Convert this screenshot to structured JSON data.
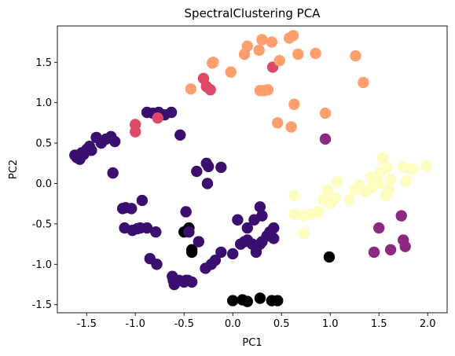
{
  "chart_data": {
    "type": "scatter",
    "title": "SpectralClustering PCA",
    "xlabel": "PC1",
    "ylabel": "PC2",
    "xlim": [
      -1.8,
      2.2
    ],
    "ylim": [
      -1.6,
      1.95
    ],
    "xticks": [
      "-1.5",
      "-1.0",
      "-0.5",
      "0.0",
      "0.5",
      "1.0",
      "1.5",
      "2.0"
    ],
    "xtick_values": [
      -1.5,
      -1.0,
      -0.5,
      0.0,
      0.5,
      1.0,
      1.5,
      2.0
    ],
    "yticks": [
      "-1.5",
      "-1.0",
      "-0.5",
      "0.0",
      "0.5",
      "1.0",
      "1.5"
    ],
    "ytick_values": [
      -1.5,
      -1.0,
      -0.5,
      0.0,
      0.5,
      1.0,
      1.5
    ],
    "grid": false,
    "series": [
      {
        "color": "#000004",
        "points": [
          [
            -0.45,
            -0.55
          ],
          [
            -0.5,
            -0.6
          ],
          [
            -0.42,
            -0.85
          ],
          [
            -0.42,
            -0.82
          ],
          [
            0.0,
            -1.45
          ],
          [
            0.1,
            -1.44
          ],
          [
            0.15,
            -1.46
          ],
          [
            0.28,
            -1.42
          ],
          [
            0.4,
            -1.45
          ],
          [
            0.46,
            -1.45
          ],
          [
            0.99,
            -0.91
          ]
        ]
      },
      {
        "color": "#3b0f70",
        "points": [
          [
            -1.62,
            0.35
          ],
          [
            -1.6,
            0.32
          ],
          [
            -1.58,
            0.34
          ],
          [
            -1.57,
            0.3
          ],
          [
            -1.55,
            0.38
          ],
          [
            -1.53,
            0.36
          ],
          [
            -1.5,
            0.42
          ],
          [
            -1.47,
            0.46
          ],
          [
            -1.45,
            0.41
          ],
          [
            -1.4,
            0.57
          ],
          [
            -1.35,
            0.5
          ],
          [
            -1.3,
            0.55
          ],
          [
            -1.25,
            0.58
          ],
          [
            -1.21,
            0.52
          ],
          [
            -1.23,
            0.13
          ],
          [
            -0.88,
            0.88
          ],
          [
            -0.82,
            0.87
          ],
          [
            -0.76,
            0.88
          ],
          [
            -0.7,
            0.85
          ],
          [
            -0.63,
            0.88
          ],
          [
            -0.54,
            0.6
          ],
          [
            -1.13,
            -0.31
          ],
          [
            -1.1,
            -0.3
          ],
          [
            -1.04,
            -0.31
          ],
          [
            -0.93,
            -0.21
          ],
          [
            -0.79,
            -0.6
          ],
          [
            -1.11,
            -0.55
          ],
          [
            -1.03,
            -0.58
          ],
          [
            -0.98,
            -0.56
          ],
          [
            -0.95,
            -0.55
          ],
          [
            -0.88,
            -0.55
          ],
          [
            -0.37,
            0.15
          ],
          [
            -0.27,
            0.25
          ],
          [
            -0.25,
            0.21
          ],
          [
            -0.12,
            0.2
          ],
          [
            -0.26,
            0.0
          ],
          [
            -0.85,
            -0.93
          ],
          [
            -0.78,
            -1.0
          ],
          [
            -0.62,
            -1.15
          ],
          [
            -0.6,
            -1.25
          ],
          [
            -0.55,
            -1.2
          ],
          [
            -0.5,
            -1.22
          ],
          [
            -0.48,
            -1.2
          ],
          [
            -0.46,
            -1.2
          ],
          [
            -0.42,
            -1.22
          ],
          [
            -0.61,
            -1.2
          ],
          [
            -0.28,
            -1.05
          ],
          [
            -0.22,
            -1.0
          ],
          [
            -0.18,
            -0.95
          ],
          [
            -0.12,
            -0.85
          ],
          [
            -0.35,
            -0.72
          ],
          [
            -0.48,
            -0.35
          ],
          [
            -0.45,
            -0.6
          ],
          [
            0.0,
            -0.87
          ],
          [
            0.05,
            -0.45
          ],
          [
            0.08,
            -0.75
          ],
          [
            0.12,
            -0.72
          ],
          [
            0.15,
            -0.7
          ],
          [
            0.2,
            -0.75
          ],
          [
            0.24,
            -0.85
          ],
          [
            0.25,
            -0.78
          ],
          [
            0.28,
            -0.75
          ],
          [
            0.3,
            -0.72
          ],
          [
            0.35,
            -0.65
          ],
          [
            0.42,
            -0.68
          ],
          [
            0.22,
            -0.45
          ],
          [
            0.28,
            -0.29
          ],
          [
            0.3,
            -0.4
          ],
          [
            0.38,
            -0.6
          ],
          [
            0.42,
            -0.55
          ],
          [
            0.15,
            -0.55
          ]
        ]
      },
      {
        "color": "#8c2981",
        "points": [
          [
            0.95,
            0.55
          ],
          [
            1.5,
            -0.55
          ],
          [
            1.45,
            -0.85
          ],
          [
            1.62,
            -0.82
          ],
          [
            1.73,
            -0.4
          ],
          [
            1.75,
            -0.7
          ],
          [
            1.77,
            -0.78
          ]
        ]
      },
      {
        "color": "#de4968",
        "points": [
          [
            -1.0,
            0.73
          ],
          [
            -1.0,
            0.64
          ],
          [
            -0.77,
            0.81
          ],
          [
            -0.3,
            1.3
          ],
          [
            -0.27,
            1.2
          ],
          [
            -0.23,
            1.16
          ],
          [
            0.41,
            1.44
          ]
        ]
      },
      {
        "color": "#fe9f6d",
        "points": [
          [
            -0.43,
            1.17
          ],
          [
            -0.21,
            1.49
          ],
          [
            -0.2,
            1.5
          ],
          [
            -0.02,
            1.38
          ],
          [
            0.12,
            1.6
          ],
          [
            0.15,
            1.7
          ],
          [
            0.27,
            1.65
          ],
          [
            0.3,
            1.78
          ],
          [
            0.4,
            1.75
          ],
          [
            0.48,
            1.52
          ],
          [
            0.58,
            1.8
          ],
          [
            0.62,
            1.83
          ],
          [
            0.67,
            1.6
          ],
          [
            0.85,
            1.61
          ],
          [
            1.26,
            1.58
          ],
          [
            1.34,
            1.25
          ],
          [
            0.28,
            1.15
          ],
          [
            0.32,
            1.15
          ],
          [
            0.36,
            1.16
          ],
          [
            0.63,
            0.98
          ],
          [
            0.46,
            0.75
          ],
          [
            0.6,
            0.7
          ],
          [
            0.95,
            0.87
          ]
        ]
      },
      {
        "color": "#fcfdbf",
        "points": [
          [
            0.63,
            -0.15
          ],
          [
            0.63,
            -0.38
          ],
          [
            0.72,
            -0.4
          ],
          [
            0.73,
            -0.62
          ],
          [
            0.8,
            -0.38
          ],
          [
            0.88,
            -0.35
          ],
          [
            0.93,
            -0.2
          ],
          [
            0.97,
            -0.08
          ],
          [
            1.0,
            -0.25
          ],
          [
            1.05,
            -0.18
          ],
          [
            1.07,
            0.02
          ],
          [
            1.2,
            -0.2
          ],
          [
            1.25,
            -0.08
          ],
          [
            1.3,
            -0.02
          ],
          [
            1.36,
            -0.1
          ],
          [
            1.42,
            0.08
          ],
          [
            1.43,
            -0.05
          ],
          [
            1.48,
            0.05
          ],
          [
            1.5,
            0.0
          ],
          [
            1.52,
            0.15
          ],
          [
            1.54,
            0.32
          ],
          [
            1.57,
            -0.15
          ],
          [
            1.58,
            0.2
          ],
          [
            1.62,
            0.05
          ],
          [
            1.75,
            0.2
          ],
          [
            1.78,
            0.03
          ],
          [
            1.82,
            0.18
          ],
          [
            1.85,
            0.18
          ],
          [
            1.99,
            0.22
          ],
          [
            1.6,
            -0.08
          ]
        ]
      }
    ]
  }
}
